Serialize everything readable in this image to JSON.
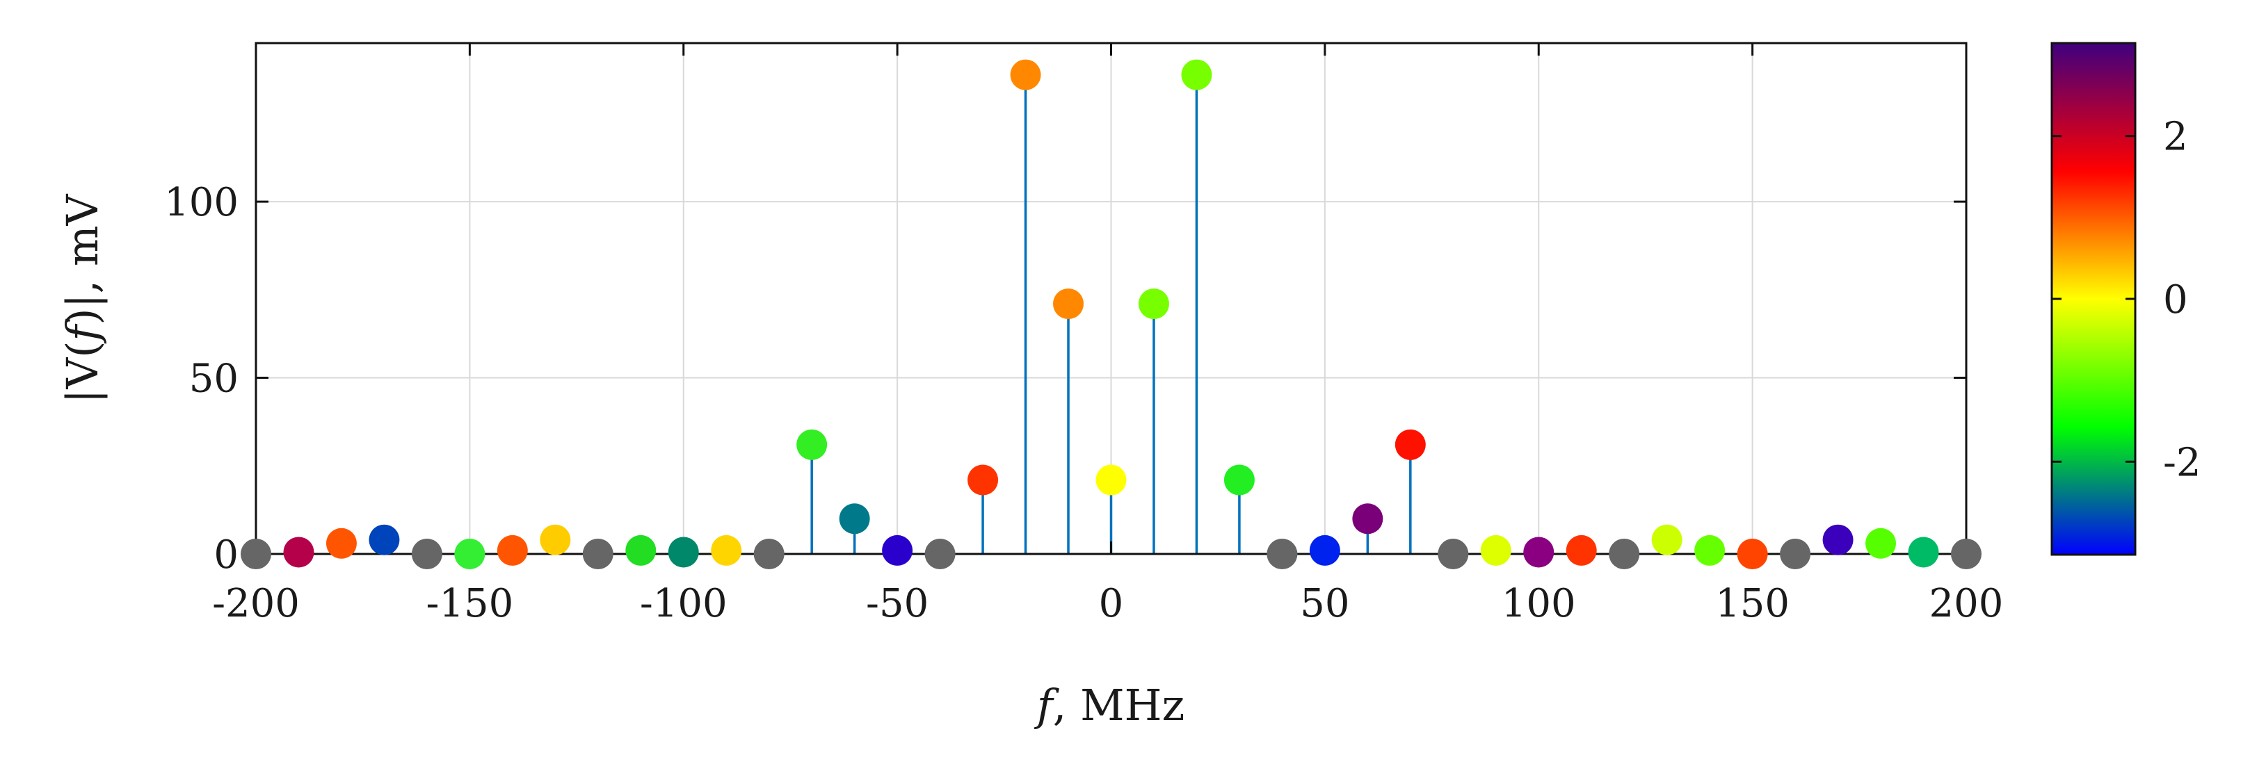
{
  "chart_data": {
    "type": "stem",
    "title": "",
    "xlabel_var": "f",
    "xlabel_unit": ", MHz",
    "ylabel_pre": "|V(",
    "ylabel_var": "f",
    "ylabel_post": ")|, mV",
    "xlim": [
      -200,
      200
    ],
    "ylim": [
      0,
      145
    ],
    "xticks": [
      -200,
      -150,
      -100,
      -50,
      0,
      50,
      100,
      150,
      200
    ],
    "yticks": [
      0,
      50,
      100
    ],
    "grid": true,
    "colorbar": {
      "range": [
        -3.14159,
        3.14159
      ],
      "ticks": [
        2,
        0,
        -2
      ],
      "colormap": [
        "#0000ff",
        "#00ff00",
        "#ffff00",
        "#ff0000",
        "#3f007f"
      ],
      "position": "right"
    },
    "series": [
      {
        "name": "|V(f)|",
        "x": [
          -200,
          -190,
          -180,
          -170,
          -160,
          -150,
          -140,
          -130,
          -120,
          -110,
          -100,
          -90,
          -80,
          -70,
          -60,
          -50,
          -40,
          -30,
          -20,
          -10,
          0,
          10,
          20,
          30,
          40,
          50,
          60,
          70,
          80,
          90,
          100,
          110,
          120,
          130,
          140,
          150,
          160,
          170,
          180,
          190,
          200
        ],
        "y": [
          0,
          0.5,
          3,
          4,
          0,
          0,
          1,
          4,
          0,
          1,
          0.5,
          1,
          0,
          31,
          10,
          1,
          0,
          21,
          136,
          71,
          21,
          71,
          136,
          21,
          0,
          1,
          10,
          31,
          0,
          1,
          0.5,
          1,
          0,
          4,
          1,
          0,
          0,
          4,
          3,
          0.5,
          0
        ],
        "colors": [
          "#666666",
          "#b5004a",
          "#ff5500",
          "#0044bb",
          "#666666",
          "#33ee33",
          "#ff5500",
          "#ffcc00",
          "#666666",
          "#22dd22",
          "#00886a",
          "#ffd500",
          "#666666",
          "#33ee22",
          "#007a8a",
          "#2a00cc",
          "#666666",
          "#ff3300",
          "#ff8800",
          "#ff8800",
          "#ffff00",
          "#77ff00",
          "#77ff00",
          "#22ee22",
          "#666666",
          "#0022ee",
          "#7a007a",
          "#ff1100",
          "#666666",
          "#ddff00",
          "#8a0080",
          "#ff3300",
          "#666666",
          "#ccff00",
          "#66ff00",
          "#ff4400",
          "#666666",
          "#3a00bb",
          "#55ff00",
          "#00bb66",
          "#666666"
        ]
      }
    ]
  }
}
